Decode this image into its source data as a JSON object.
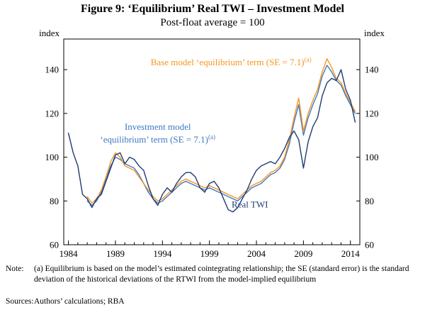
{
  "title": "Figure 9: ‘Equilibrium’ Real TWI – Investment Model",
  "subtitle": "Post-float average = 100",
  "note": {
    "label": "Note:",
    "text": "(a) Equilibrium is based on the model’s estimated cointegrating relationship; the SE (standard error) is the standard deviation of the historical deviations of the RTWI from the model-implied equilibrium"
  },
  "sources": {
    "label": "Sources:",
    "text": "Authors’ calculations; RBA"
  },
  "chart_data": {
    "type": "line",
    "title": "Figure 9: ‘Equilibrium’ Real TWI – Investment Model",
    "subtitle": "Post-float average = 100",
    "y_axis_label_left": "index",
    "y_axis_label_right": "index",
    "ylim": [
      60,
      154
    ],
    "yticks": [
      60,
      80,
      100,
      120,
      140
    ],
    "xlim": [
      1983.5,
      2015
    ],
    "xticks_labeled": [
      1984,
      1989,
      1994,
      1999,
      2004,
      2009,
      2014
    ],
    "grid": false,
    "legend": "in-plot annotations",
    "series": [
      {
        "id": "investment-model",
        "name": "Investment model ‘equilibrium’ term (SE = 7.1)",
        "sup": "(a)",
        "color": "#3E79C0",
        "x_start": 1986.0,
        "x_step": 0.5,
        "values": [
          80,
          78,
          80,
          84,
          90,
          96,
          100,
          99,
          97,
          96,
          95,
          92,
          88,
          84,
          81,
          79,
          80,
          82,
          84,
          86,
          88,
          89,
          88,
          87,
          86,
          85,
          86,
          85,
          84,
          83,
          82,
          81,
          80,
          82,
          84,
          86,
          87,
          88,
          90,
          92,
          93,
          95,
          99,
          106,
          116,
          124,
          110,
          118,
          124,
          129,
          137,
          142,
          139,
          135,
          133,
          128,
          124,
          120
        ]
      },
      {
        "id": "base-model",
        "name": "Base model ‘equilibrium’ term (SE = 7.1)",
        "sup": "(a)",
        "color": "#F7941D",
        "x_start": 1986.0,
        "x_step": 0.5,
        "values": [
          82,
          79,
          81,
          85,
          91,
          98,
          102,
          100,
          96,
          95,
          94,
          91,
          88,
          85,
          82,
          80,
          81,
          83,
          85,
          87,
          89,
          90,
          89,
          88,
          87,
          86,
          87,
          86,
          85,
          84,
          83,
          82,
          81,
          83,
          85,
          87,
          88,
          89,
          91,
          93,
          94,
          96,
          100,
          108,
          118,
          127,
          112,
          120,
          126,
          131,
          139,
          145,
          141,
          136,
          134,
          129,
          125,
          121
        ]
      },
      {
        "id": "real-twi",
        "name": "Real TWI",
        "sup": "",
        "color": "#1F3B73",
        "x_start": 1984.0,
        "x_step": 0.5,
        "values": [
          111,
          102,
          96,
          83,
          81,
          77,
          81,
          83,
          89,
          95,
          101,
          102,
          97,
          100,
          99,
          96,
          94,
          87,
          81,
          78,
          83,
          86,
          84,
          88,
          91,
          93,
          93,
          91,
          86,
          84,
          88,
          89,
          86,
          81,
          76,
          75,
          77,
          81,
          85,
          90,
          94,
          96,
          97,
          98,
          97,
          100,
          104,
          109,
          112,
          108,
          95,
          107,
          114,
          118,
          128,
          134,
          136,
          135,
          140,
          131,
          126,
          116
        ]
      }
    ],
    "annotations": [
      {
        "id": "base-model-label",
        "color": "#F7941D",
        "x": 2001.3,
        "y": 142,
        "anchor": "middle",
        "lines": [
          {
            "text": "Base model ‘equilibrium’ term (SE = 7.1)",
            "sup": "(a)"
          }
        ]
      },
      {
        "id": "investment-model-label",
        "color": "#3E79C0",
        "x": 1993.5,
        "y": 112.5,
        "anchor": "middle",
        "lines": [
          {
            "text": "Investment model",
            "sup": ""
          },
          {
            "text": "‘equilibrium’ term (SE = 7.1)",
            "sup": "(a)"
          }
        ]
      },
      {
        "id": "real-twi-label",
        "color": "#1F3B73",
        "x": 2003.3,
        "y": 77,
        "anchor": "middle",
        "lines": [
          {
            "text": "Real TWI",
            "sup": ""
          }
        ]
      }
    ]
  }
}
